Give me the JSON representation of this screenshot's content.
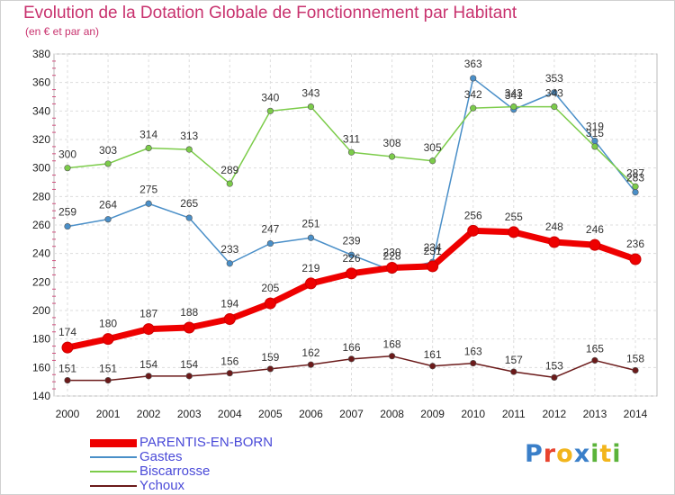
{
  "header": {
    "title": "Evolution de la Dotation Globale de Fonctionnement par Habitant",
    "subtitle": "(en € et par an)"
  },
  "logo": {
    "text": "Proxiti",
    "colors": [
      "#3a7fc9",
      "#e8432e",
      "#f2b51c",
      "#3a7fc9",
      "#5bb33a",
      "#f2b51c",
      "#5bb33a"
    ]
  },
  "chart_data": {
    "type": "line",
    "title": "Evolution de la Dotation Globale de Fonctionnement par Habitant",
    "subtitle": "(en € et par an)",
    "x": [
      2000,
      2001,
      2002,
      2003,
      2004,
      2005,
      2006,
      2007,
      2008,
      2009,
      2010,
      2011,
      2012,
      2013,
      2014
    ],
    "ylim": [
      140,
      380
    ],
    "yticks": [
      140,
      160,
      180,
      200,
      220,
      240,
      260,
      280,
      300,
      320,
      340,
      360,
      380
    ],
    "grid": true,
    "legend_position": "bottom-left",
    "series": [
      {
        "name": "PARENTIS-EN-BORN",
        "color": "#ee0000",
        "emphasis": true,
        "values": [
          174,
          180,
          187,
          188,
          194,
          205,
          219,
          226,
          230,
          231,
          256,
          255,
          248,
          246,
          236
        ]
      },
      {
        "name": "Gastes",
        "color": "#4a8fc8",
        "values": [
          259,
          264,
          275,
          265,
          233,
          247,
          251,
          239,
          228,
          234,
          363,
          341,
          353,
          319,
          283
        ]
      },
      {
        "name": "Biscarrosse",
        "color": "#7ccc4a",
        "values": [
          300,
          303,
          314,
          313,
          289,
          340,
          343,
          311,
          308,
          305,
          342,
          343,
          343,
          315,
          287
        ]
      },
      {
        "name": "Ychoux",
        "color": "#6b1a1a",
        "values": [
          151,
          151,
          154,
          154,
          156,
          159,
          162,
          166,
          168,
          161,
          163,
          157,
          153,
          165,
          158
        ]
      }
    ]
  }
}
